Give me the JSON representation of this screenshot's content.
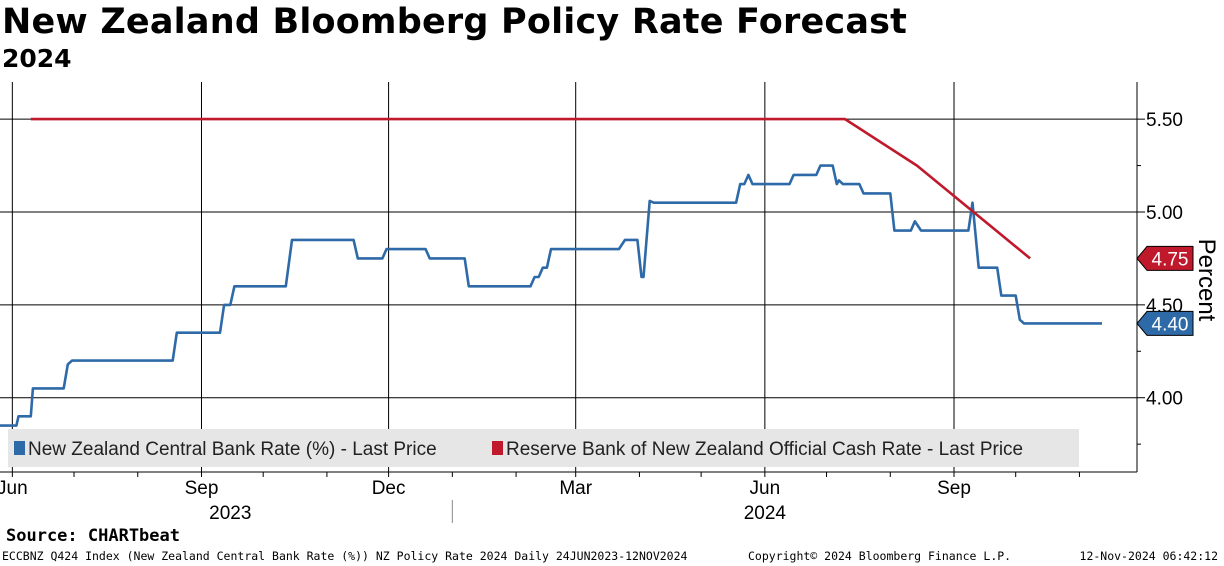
{
  "header": {
    "title": "New Zealand Bloomberg Policy Rate Forecast",
    "subtitle": "2024"
  },
  "footer": {
    "source": "Source: CHARTbeat",
    "description": "ECCBNZ Q424 Index (New Zealand Central Bank Rate (%)) NZ Policy Rate 2024  Daily 24JUN2023-12NOV2024",
    "copyright": "Copyright© 2024 Bloomberg Finance L.P.",
    "timestamp": "12-Nov-2024 06:42:12"
  },
  "chart_data": {
    "type": "line",
    "ylabel": "Percent",
    "ylim": [
      3.6,
      5.7
    ],
    "yticks": [
      4.0,
      4.5,
      5.0,
      5.5
    ],
    "ytick_labels": [
      "4.00",
      "4.50",
      "5.00",
      "5.50"
    ],
    "xlim": [
      "2023-05-26",
      "2024-11-29"
    ],
    "x_ticks": [
      {
        "date": "2023-06-01",
        "label": "Jun"
      },
      {
        "date": "2023-09-01",
        "label": "Sep"
      },
      {
        "date": "2023-12-01",
        "label": "Dec"
      },
      {
        "date": "2024-03-01",
        "label": "Mar"
      },
      {
        "date": "2024-06-01",
        "label": "Jun"
      },
      {
        "date": "2024-09-01",
        "label": "Sep"
      }
    ],
    "year_labels": [
      {
        "date": "2023-09-15",
        "label": "2023"
      },
      {
        "date": "2024-06-01",
        "label": "2024"
      }
    ],
    "year_divider": "2024-01-01",
    "grid": true,
    "legend_position": "bottom-left",
    "series": [
      {
        "name": "New Zealand Central Bank Rate (%) - Last Price",
        "color": "#2e6aa8",
        "last_value_label": "4.40",
        "points": [
          [
            "2023-05-26",
            3.85
          ],
          [
            "2023-06-03",
            3.85
          ],
          [
            "2023-06-04",
            3.9
          ],
          [
            "2023-06-10",
            3.9
          ],
          [
            "2023-06-11",
            4.05
          ],
          [
            "2023-06-26",
            4.05
          ],
          [
            "2023-06-28",
            4.18
          ],
          [
            "2023-06-30",
            4.2
          ],
          [
            "2023-08-18",
            4.2
          ],
          [
            "2023-08-20",
            4.35
          ],
          [
            "2023-09-10",
            4.35
          ],
          [
            "2023-09-12",
            4.5
          ],
          [
            "2023-09-15",
            4.5
          ],
          [
            "2023-09-17",
            4.6
          ],
          [
            "2023-10-12",
            4.6
          ],
          [
            "2023-10-15",
            4.85
          ],
          [
            "2023-10-17",
            4.85
          ],
          [
            "2023-11-14",
            4.85
          ],
          [
            "2023-11-16",
            4.75
          ],
          [
            "2023-11-28",
            4.75
          ],
          [
            "2023-11-30",
            4.8
          ],
          [
            "2023-12-19",
            4.8
          ],
          [
            "2023-12-21",
            4.75
          ],
          [
            "2024-01-07",
            4.75
          ],
          [
            "2024-01-09",
            4.6
          ],
          [
            "2024-01-11",
            4.6
          ],
          [
            "2024-02-08",
            4.6
          ],
          [
            "2024-02-10",
            4.65
          ],
          [
            "2024-02-12",
            4.65
          ],
          [
            "2024-02-14",
            4.7
          ],
          [
            "2024-02-16",
            4.7
          ],
          [
            "2024-02-18",
            4.8
          ],
          [
            "2024-03-22",
            4.8
          ],
          [
            "2024-03-25",
            4.85
          ],
          [
            "2024-03-31",
            4.85
          ],
          [
            "2024-04-02",
            4.65
          ],
          [
            "2024-04-03",
            4.65
          ],
          [
            "2024-04-06",
            5.06
          ],
          [
            "2024-04-08",
            5.05
          ],
          [
            "2024-05-18",
            5.05
          ],
          [
            "2024-05-20",
            5.15
          ],
          [
            "2024-05-22",
            5.15
          ],
          [
            "2024-05-24",
            5.2
          ],
          [
            "2024-05-26",
            5.15
          ],
          [
            "2024-06-13",
            5.15
          ],
          [
            "2024-06-15",
            5.2
          ],
          [
            "2024-06-26",
            5.2
          ],
          [
            "2024-06-28",
            5.25
          ],
          [
            "2024-07-04",
            5.25
          ],
          [
            "2024-07-06",
            5.15
          ],
          [
            "2024-07-07",
            5.17
          ],
          [
            "2024-07-09",
            5.15
          ],
          [
            "2024-07-17",
            5.15
          ],
          [
            "2024-07-19",
            5.1
          ],
          [
            "2024-08-01",
            5.1
          ],
          [
            "2024-08-03",
            4.9
          ],
          [
            "2024-08-11",
            4.9
          ],
          [
            "2024-08-13",
            4.95
          ],
          [
            "2024-08-16",
            4.9
          ],
          [
            "2024-08-29",
            4.9
          ],
          [
            "2024-09-08",
            4.9
          ],
          [
            "2024-09-10",
            5.05
          ],
          [
            "2024-09-13",
            4.7
          ],
          [
            "2024-09-15",
            4.7
          ],
          [
            "2024-09-22",
            4.7
          ],
          [
            "2024-09-24",
            4.55
          ],
          [
            "2024-10-01",
            4.55
          ],
          [
            "2024-10-03",
            4.42
          ],
          [
            "2024-10-05",
            4.4
          ],
          [
            "2024-10-20",
            4.4
          ],
          [
            "2024-11-12",
            4.4
          ]
        ]
      },
      {
        "name": "Reserve Bank of New Zealand Official Cash Rate - Last Price",
        "color": "#c0192c",
        "last_value_label": "4.75",
        "points": [
          [
            "2023-06-10",
            5.5
          ],
          [
            "2024-07-10",
            5.5
          ],
          [
            "2024-08-14",
            5.25
          ],
          [
            "2024-10-08",
            4.75
          ]
        ]
      }
    ]
  }
}
